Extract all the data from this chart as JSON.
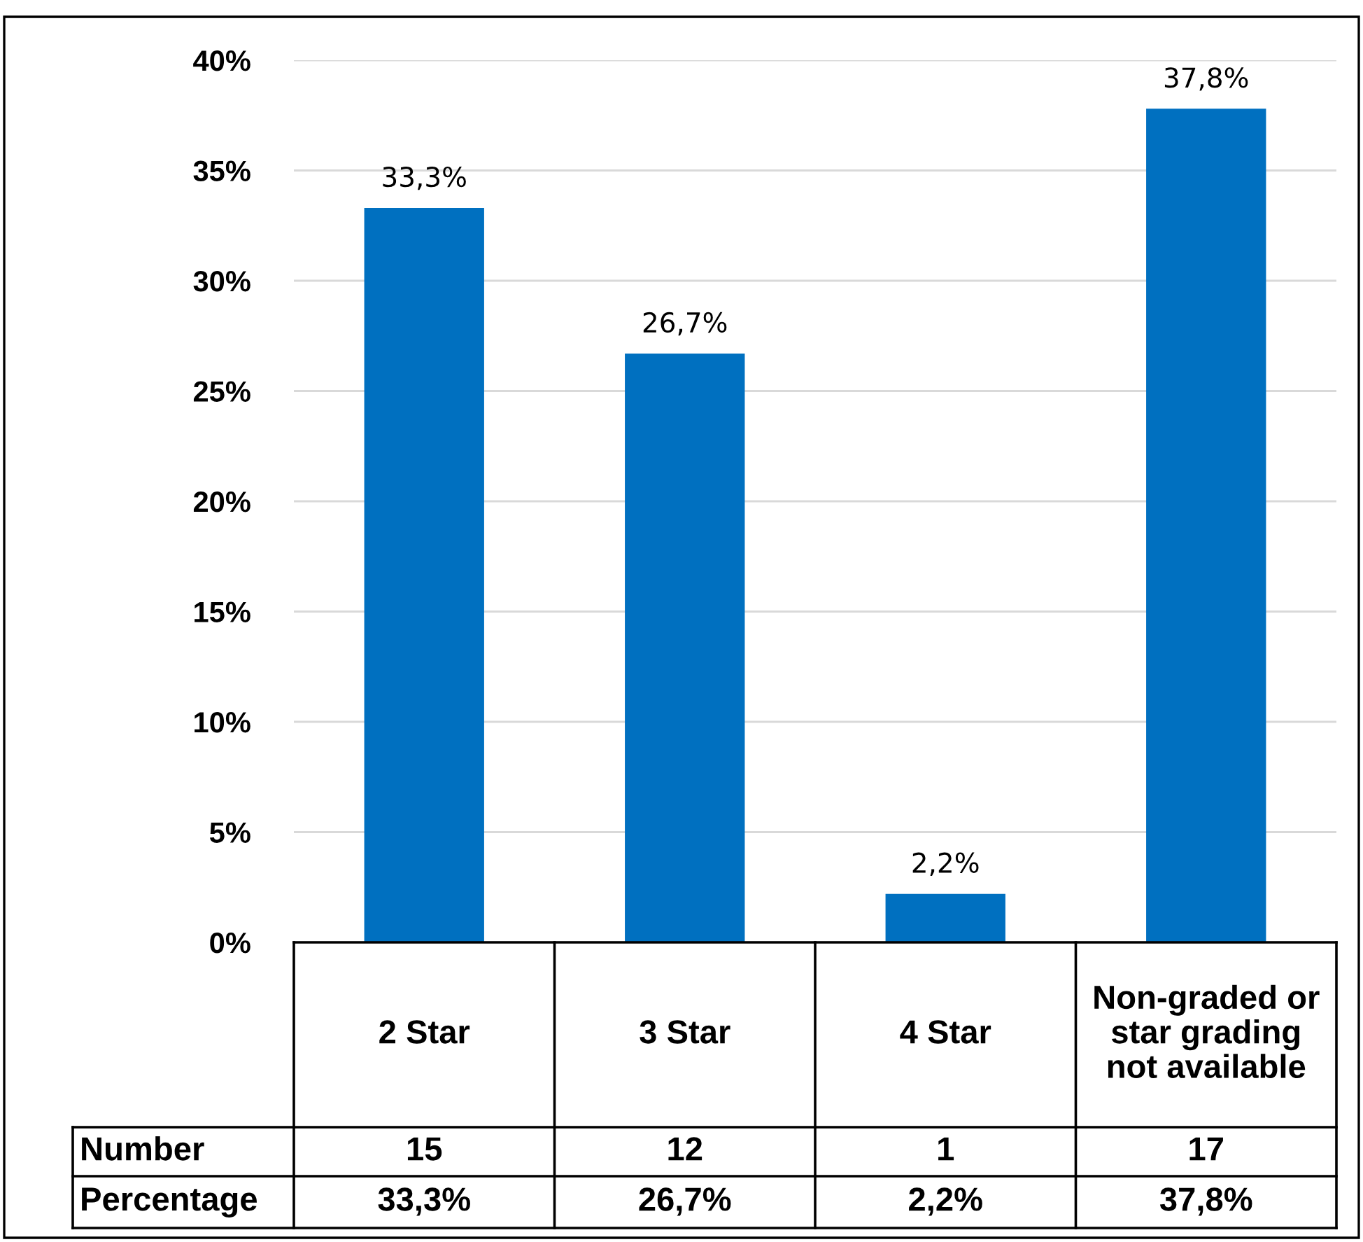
{
  "chart_data": {
    "type": "bar",
    "categories": [
      "2 Star",
      "3 Star",
      "4 Star",
      "Non-graded or star grading not available"
    ],
    "values": [
      33.3,
      26.7,
      2.2,
      37.8
    ],
    "value_labels": [
      "33,3%",
      "26,7%",
      "2,2%",
      "37,8%"
    ],
    "color": "#0070c0",
    "ylim": [
      0,
      40
    ],
    "yticks": [
      {
        "value": 0,
        "label": "0%"
      },
      {
        "value": 5,
        "label": "5%"
      },
      {
        "value": 10,
        "label": "10%"
      },
      {
        "value": 15,
        "label": "15%"
      },
      {
        "value": 20,
        "label": "20%"
      },
      {
        "value": 25,
        "label": "25%"
      },
      {
        "value": 30,
        "label": "30%"
      },
      {
        "value": 35,
        "label": "35%"
      },
      {
        "value": 40,
        "label": "40%"
      }
    ],
    "grid": "y",
    "legend": false,
    "annotations": [
      "Number",
      "15",
      "12",
      "1",
      "17",
      "Percentage"
    ]
  }
}
